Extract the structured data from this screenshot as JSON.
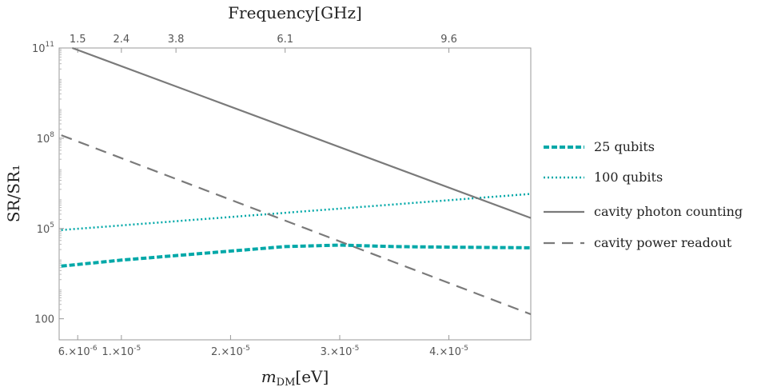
{
  "colors": {
    "teal": "#00a8a8",
    "gray": "#7a7a7a",
    "frame": "#999999"
  },
  "chart_data": {
    "type": "line",
    "xlabel": "m_DM[eV]",
    "xlabel_main": "m",
    "xlabel_sub": "DM",
    "xlabel_rest": "[eV]",
    "top_xlabel": "Frequency[GHz]",
    "ylabel": "SR/SR₁",
    "xscale": "linear",
    "yscale": "log",
    "xlim": [
      4.3e-06,
      4.75e-05
    ],
    "ylim_log10": [
      1.3,
      11.0
    ],
    "x_ticks": [
      {
        "value": 6e-06,
        "label_mantissa": "6.",
        "label_exp": "-6"
      },
      {
        "value": 1e-05,
        "label_mantissa": "1.",
        "label_exp": "-5"
      },
      {
        "value": 2e-05,
        "label_mantissa": "2.",
        "label_exp": "-5"
      },
      {
        "value": 3e-05,
        "label_mantissa": "3.",
        "label_exp": "-5"
      },
      {
        "value": 4e-05,
        "label_mantissa": "4.",
        "label_exp": "-5"
      }
    ],
    "top_ticks": [
      {
        "value": 6e-06,
        "label": "1.5"
      },
      {
        "value": 1e-05,
        "label": "2.4"
      },
      {
        "value": 1.5e-05,
        "label": "3.8"
      },
      {
        "value": 2.5e-05,
        "label": "6.1"
      },
      {
        "value": 4e-05,
        "label": "9.6"
      }
    ],
    "y_ticks": [
      {
        "log10": 2,
        "label": "100",
        "exp": ""
      },
      {
        "log10": 5,
        "label": "10",
        "exp": "5"
      },
      {
        "log10": 8,
        "label": "10",
        "exp": "8"
      },
      {
        "log10": 11,
        "label": "10",
        "exp": "11"
      }
    ],
    "series": [
      {
        "name": "25 qubits",
        "style": "dashed-bold",
        "x": [
          4.5e-06,
          1e-05,
          2e-05,
          2.5e-05,
          3e-05,
          3.5e-05,
          4e-05,
          4.75e-05
        ],
        "log10_y": [
          3.75,
          3.95,
          4.25,
          4.4,
          4.45,
          4.4,
          4.38,
          4.36
        ]
      },
      {
        "name": "100 qubits",
        "style": "dotted",
        "x": [
          4.5e-06,
          4.75e-05
        ],
        "log10_y": [
          4.95,
          6.15
        ]
      },
      {
        "name": "cavity photon counting",
        "style": "solid",
        "x": [
          5.5e-06,
          4.75e-05
        ],
        "log10_y": [
          11.0,
          5.35
        ]
      },
      {
        "name": "cavity power readout",
        "style": "dashed",
        "x": [
          4.5e-06,
          4.75e-05
        ],
        "log10_y": [
          8.1,
          2.15
        ]
      }
    ]
  }
}
